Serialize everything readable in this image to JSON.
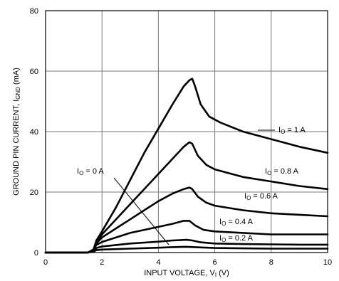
{
  "chart_data": {
    "type": "line",
    "title": "",
    "xlabel": "INPUT VOLTAGE, V",
    "xlabel_sub": "I",
    "xlabel_unit": " (V)",
    "ylabel": "GROUND PIN CURRENT, I",
    "ylabel_sub": "GND",
    "ylabel_unit": " (mA)",
    "xlim": [
      0,
      10
    ],
    "ylim": [
      0,
      80
    ],
    "xticks": [
      0,
      2,
      4,
      6,
      8,
      10
    ],
    "yticks": [
      0,
      20,
      40,
      60,
      80
    ],
    "grid": true,
    "series": [
      {
        "name": "IO = 1 A",
        "label_prefix": "I",
        "label_sub": "O",
        "label_suffix": " = 1 A",
        "x": [
          0,
          1.5,
          1.7,
          1.8,
          2.0,
          2.5,
          3.0,
          3.5,
          4.0,
          4.5,
          4.9,
          5.1,
          5.2,
          5.3,
          5.5,
          5.8,
          6.2,
          7.0,
          8.0,
          9.0,
          10.0
        ],
        "y": [
          0,
          0,
          1,
          4,
          7,
          15,
          24,
          33,
          41,
          49,
          55,
          57,
          57.5,
          55,
          49,
          45,
          43,
          40,
          37.5,
          35,
          33
        ]
      },
      {
        "name": "IO = 0.8 A",
        "label_prefix": "I",
        "label_sub": "O",
        "label_suffix": " = 0.8 A",
        "x": [
          0,
          1.5,
          1.7,
          1.8,
          2.0,
          2.5,
          3.0,
          3.5,
          4.0,
          4.5,
          4.9,
          5.1,
          5.2,
          5.4,
          5.7,
          6.0,
          7.0,
          8.0,
          9.0,
          10.0
        ],
        "y": [
          0,
          0,
          1,
          3.5,
          6,
          11,
          16,
          21,
          26,
          31,
          35,
          36.5,
          36,
          32,
          29,
          27.5,
          25,
          23.5,
          22,
          21
        ]
      },
      {
        "name": "IO = 0.6 A",
        "label_prefix": "I",
        "label_sub": "O",
        "label_suffix": " = 0.6 A",
        "x": [
          0,
          1.5,
          1.7,
          1.8,
          2.0,
          2.5,
          3.0,
          3.5,
          4.0,
          4.5,
          4.9,
          5.1,
          5.2,
          5.4,
          5.7,
          6.0,
          7.0,
          8.0,
          9.0,
          10.0
        ],
        "y": [
          0,
          0,
          1,
          3,
          5,
          8,
          11,
          14,
          17,
          19.5,
          21,
          21.5,
          21,
          18.5,
          16.5,
          15.5,
          14,
          13,
          12.5,
          12
        ]
      },
      {
        "name": "IO = 0.4 A",
        "label_prefix": "I",
        "label_sub": "O",
        "label_suffix": " = 0.4 A",
        "x": [
          0,
          1.5,
          1.7,
          1.8,
          2.0,
          2.5,
          3.0,
          3.5,
          4.0,
          4.5,
          4.9,
          5.1,
          5.3,
          5.6,
          6.0,
          7.0,
          8.0,
          9.0,
          10.0
        ],
        "y": [
          0,
          0,
          1,
          2.5,
          3.5,
          5,
          6.5,
          7.5,
          8.5,
          9.5,
          10.5,
          10.5,
          9,
          7.5,
          7,
          6.5,
          6,
          6,
          6
        ]
      },
      {
        "name": "IO = 0.2 A",
        "label_prefix": "I",
        "label_sub": "O",
        "label_suffix": " = 0.2 A",
        "x": [
          0,
          1.5,
          1.7,
          1.8,
          2.0,
          2.5,
          3.0,
          3.5,
          4.0,
          4.5,
          5.0,
          5.2,
          5.5,
          6.0,
          7.0,
          8.0,
          9.0,
          10.0
        ],
        "y": [
          0,
          0,
          0.5,
          1.5,
          2,
          2.5,
          3,
          3.3,
          3.6,
          4,
          4.2,
          4,
          3.4,
          3,
          2.8,
          2.7,
          2.6,
          2.6
        ]
      },
      {
        "name": "IO = 0 A",
        "label_prefix": "I",
        "label_sub": "O",
        "label_suffix": " = 0 A",
        "x": [
          0,
          1.5,
          1.7,
          1.8,
          2.0,
          3.0,
          4.0,
          4.5,
          5.0,
          5.5,
          6.0,
          7.0,
          8.0,
          9.0,
          10.0
        ],
        "y": [
          0,
          0,
          0.3,
          0.8,
          1,
          1.3,
          1.6,
          1.8,
          1.9,
          1.7,
          1.5,
          1.4,
          1.3,
          1.3,
          1.3
        ]
      }
    ]
  }
}
